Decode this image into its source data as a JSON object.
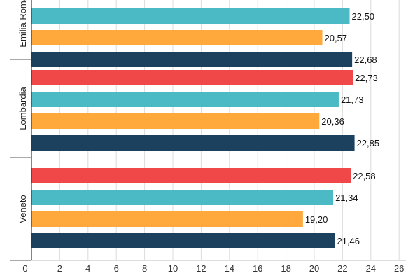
{
  "chart_data": {
    "type": "bar",
    "orientation": "horizontal",
    "categories": [
      "Emilia Romagna",
      "Lombardia",
      "Veneto"
    ],
    "series": [
      {
        "color": "#f04848",
        "values": [
          null,
          22.73,
          22.58
        ]
      },
      {
        "color": "#4bbac4",
        "values": [
          22.5,
          21.73,
          21.34
        ]
      },
      {
        "color": "#ffa83c",
        "values": [
          20.57,
          20.36,
          19.2
        ]
      },
      {
        "color": "#1b415e",
        "values": [
          22.68,
          22.85,
          21.46
        ]
      }
    ],
    "value_labels": [
      [
        null,
        "22,50",
        "20,57",
        "22,68"
      ],
      [
        "22,73",
        "21,73",
        "20,36",
        "22,85"
      ],
      [
        "22,58",
        "21,34",
        "19,20",
        "21,46"
      ]
    ],
    "x_ticks": [
      "0",
      "2",
      "4",
      "6",
      "8",
      "10",
      "12",
      "14",
      "16",
      "18",
      "20",
      "22",
      "24",
      "26"
    ],
    "xlim": [
      0,
      26
    ],
    "grid": true,
    "legend": "none"
  }
}
